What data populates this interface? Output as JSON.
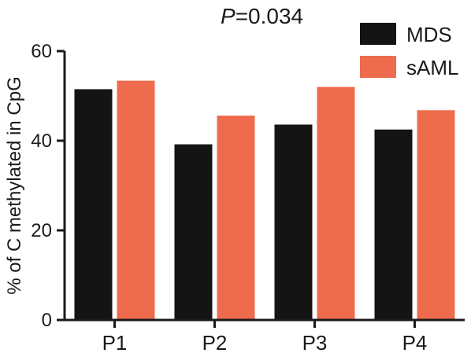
{
  "chart_data": {
    "type": "bar",
    "title_italic": "P",
    "title_rest": "=0.034",
    "xlabel": "",
    "ylabel": "% of C methylated in CpG",
    "ylim": [
      0,
      60
    ],
    "yticks": [
      0,
      20,
      40,
      60
    ],
    "categories": [
      "P1",
      "P2",
      "P3",
      "P4"
    ],
    "series": [
      {
        "name": "MDS",
        "color": "#141414",
        "values": [
          51.5,
          39.2,
          43.6,
          42.5
        ]
      },
      {
        "name": "sAML",
        "color": "#ee6b4d",
        "values": [
          53.4,
          45.6,
          52.0,
          46.8
        ]
      }
    ],
    "legend_position": "top-right",
    "grid": false
  }
}
